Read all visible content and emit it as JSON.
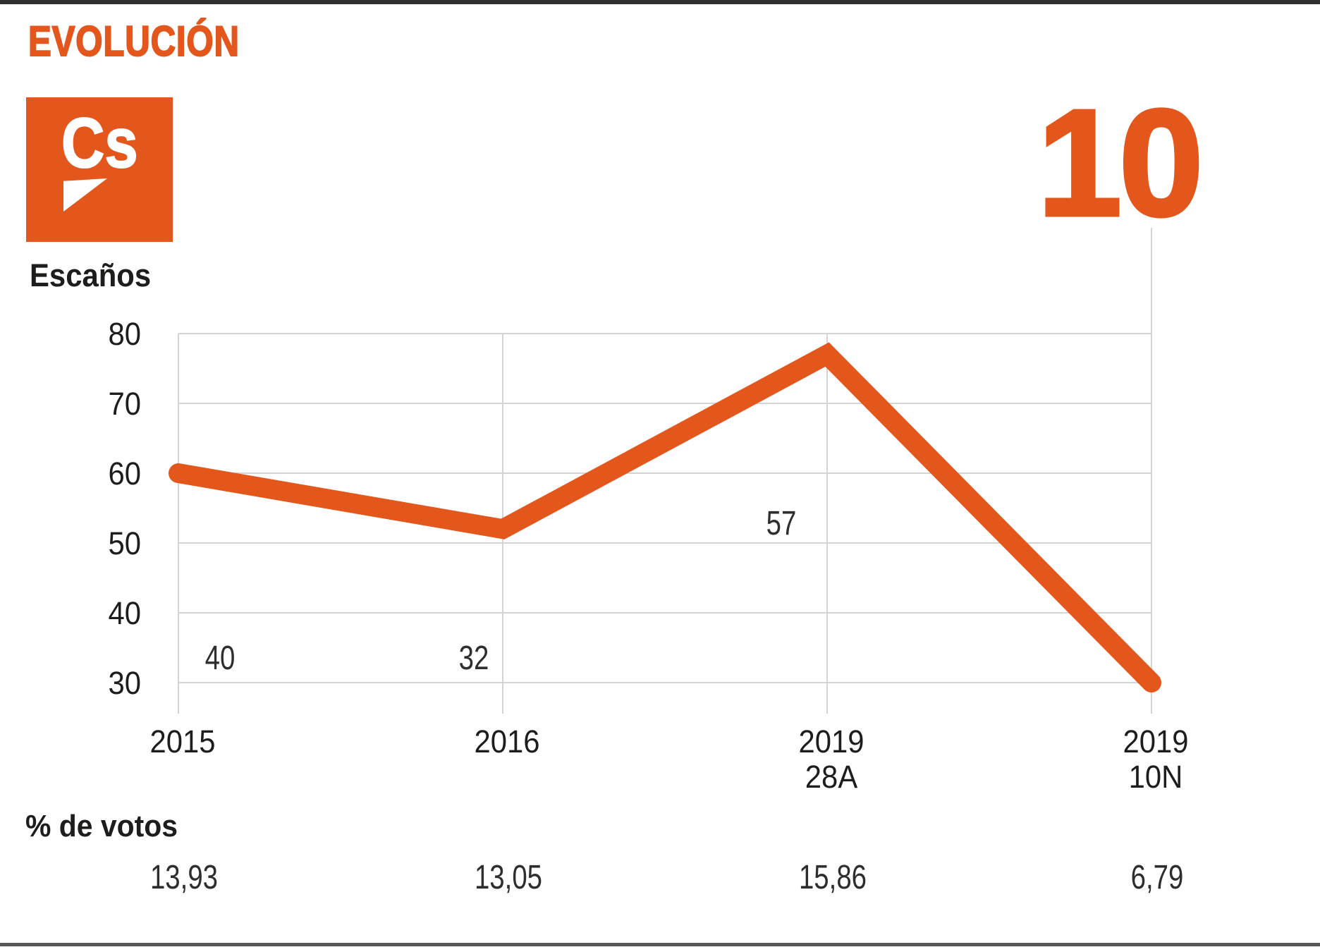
{
  "page": {
    "title": "EVOLUCIÓN",
    "logo_text": "Cs"
  },
  "chart_data": {
    "type": "line",
    "title": "Escaños",
    "categories": [
      [
        "2015"
      ],
      [
        "2016"
      ],
      [
        "2019",
        "28A"
      ],
      [
        "2019",
        "10N"
      ]
    ],
    "series": [
      {
        "name": "Escaños",
        "values": [
          40,
          32,
          57,
          10
        ]
      }
    ],
    "yticks": [
      30,
      40,
      50,
      60,
      70,
      80
    ],
    "ylim": [
      30,
      80
    ],
    "grid": true,
    "legend": "none",
    "votes": {
      "label": "% de votos",
      "values": [
        "13,93",
        "13,05",
        "15,86",
        "6,79"
      ]
    }
  },
  "colors": {
    "accent": "#e4571c",
    "grid": "#d4d4d4",
    "text": "#1d1d1b",
    "muted_text": "#2e2e2d",
    "rule_top": "#2f2f2f",
    "rule_bottom": "#565656"
  }
}
